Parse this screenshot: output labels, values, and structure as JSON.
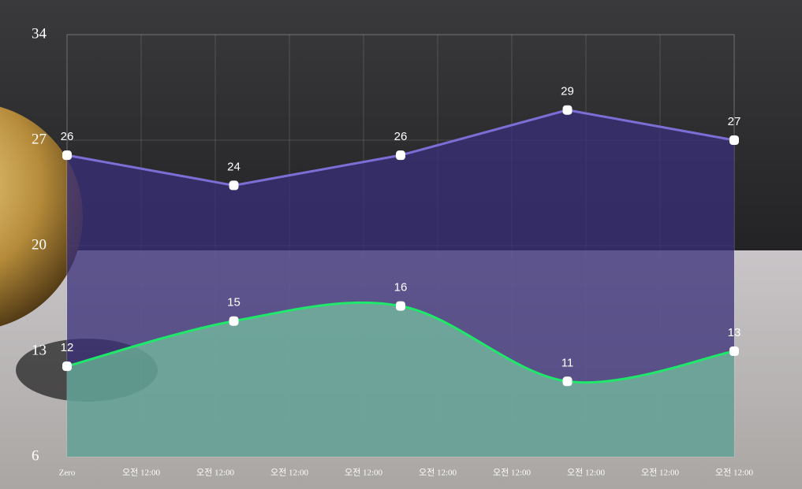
{
  "chart_data": {
    "type": "line",
    "x": [
      0,
      2.25,
      4.5,
      6.75,
      9
    ],
    "xlim": [
      0,
      9
    ],
    "xticks": [
      {
        "value": 0,
        "label": "Zero"
      },
      {
        "value": 1,
        "label": "오전 12:00"
      },
      {
        "value": 2,
        "label": "오전 12:00"
      },
      {
        "value": 3,
        "label": "오전 12:00"
      },
      {
        "value": 4,
        "label": "오전 12:00"
      },
      {
        "value": 5,
        "label": "오전 12:00"
      },
      {
        "value": 6,
        "label": "오전 12:00"
      },
      {
        "value": 7,
        "label": "오전 12:00"
      },
      {
        "value": 8,
        "label": "오전 12:00"
      },
      {
        "value": 9,
        "label": "오전 12:00"
      }
    ],
    "ylim": [
      6,
      34
    ],
    "yticks": [
      6,
      13,
      20,
      27,
      34
    ],
    "grid": true,
    "series": [
      {
        "color": "#7b6fd6",
        "area_color": "#3a2f7a",
        "smooth": false,
        "values": [
          26,
          24,
          26,
          29,
          27
        ]
      },
      {
        "color": "#1fe86a",
        "area_color": "#7de8a6",
        "smooth": true,
        "values": [
          12,
          15,
          16,
          11,
          13
        ]
      }
    ]
  }
}
